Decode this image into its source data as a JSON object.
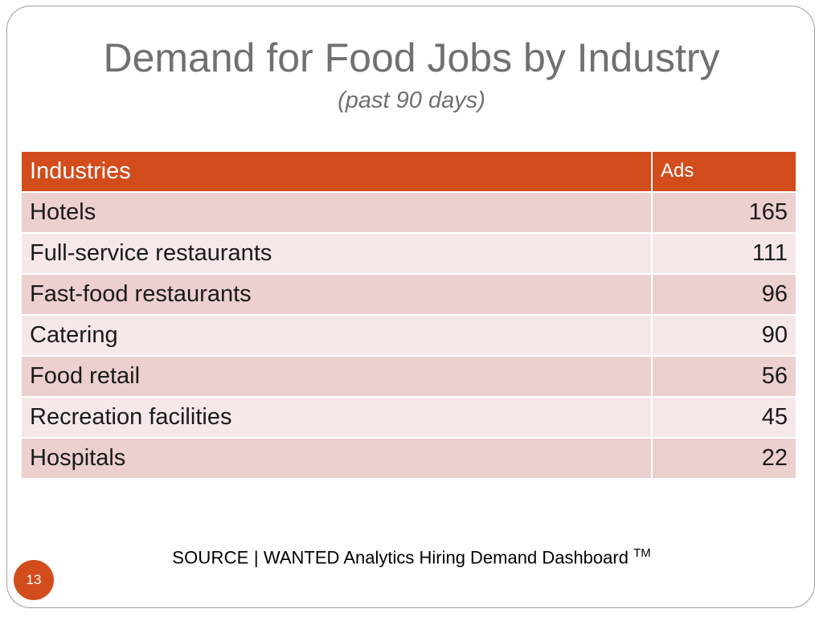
{
  "slide": {
    "title": "Demand for Food Jobs by Industry",
    "subtitle": "(past 90 days)",
    "page_number": "13"
  },
  "table": {
    "headers": {
      "industry": "Industries",
      "ads": "Ads"
    },
    "rows": [
      {
        "industry": "Hotels",
        "ads": "165"
      },
      {
        "industry": "Full-service restaurants",
        "ads": "111"
      },
      {
        "industry": "Fast-food restaurants",
        "ads": "96"
      },
      {
        "industry": "Catering",
        "ads": "90"
      },
      {
        "industry": "Food retail",
        "ads": "56"
      },
      {
        "industry": "Recreation facilities",
        "ads": "45"
      },
      {
        "industry": "Hospitals",
        "ads": "22"
      }
    ]
  },
  "source": {
    "label": "SOURCE |",
    "text": "WANTED Analytics Hiring Demand Dashboard",
    "trademark": "TM"
  },
  "colors": {
    "accent": "#d24c1c",
    "row_odd": "#ecd0cf",
    "row_even": "#f6e8e7",
    "title_text": "#707070"
  }
}
